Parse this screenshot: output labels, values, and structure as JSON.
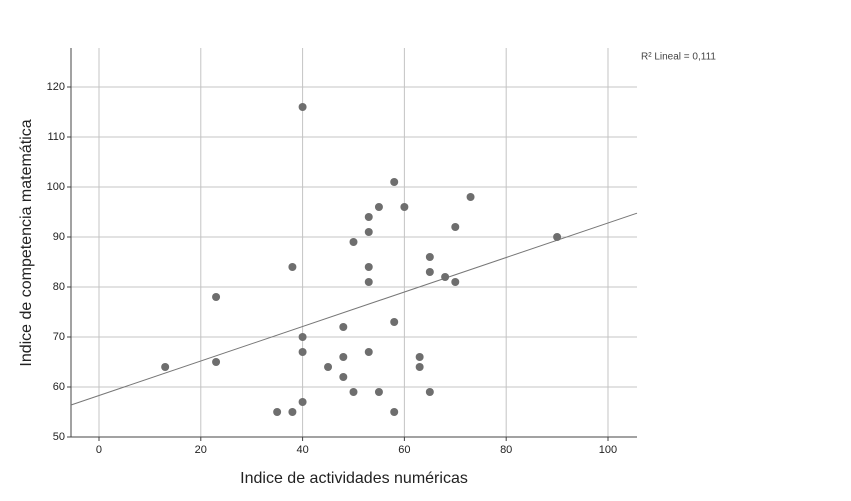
{
  "chart_data": {
    "type": "scatter",
    "xlabel": "Indice de actividades numéricas",
    "ylabel": "Indice de competencia matemática",
    "annotation": "R² Lineal = 0,111",
    "x": [
      40,
      58,
      73,
      55,
      60,
      53,
      70,
      53,
      50,
      90,
      65,
      38,
      53,
      65,
      68,
      53,
      70,
      23,
      58,
      48,
      40,
      40,
      53,
      48,
      63,
      23,
      13,
      45,
      63,
      48,
      40,
      50,
      55,
      65,
      35,
      38,
      58
    ],
    "values": [
      116,
      101,
      98,
      96,
      96,
      94,
      92,
      91,
      89,
      90,
      86,
      84,
      84,
      83,
      82,
      81,
      81,
      78,
      73,
      72,
      70,
      67,
      67,
      66,
      66,
      65,
      64,
      64,
      64,
      62,
      57,
      59,
      59,
      59,
      55,
      55,
      55
    ],
    "color": "#6e6e6e",
    "fit": {
      "intercept": 58.3,
      "slope": 0.345,
      "color": "#777777"
    },
    "xlim": [
      -5.5,
      105.7
    ],
    "ylim": [
      50,
      127.8
    ],
    "xticks": [
      0,
      20,
      40,
      60,
      80,
      100
    ],
    "yticks": [
      50,
      60,
      70,
      80,
      90,
      100,
      110,
      120
    ],
    "grid": true
  }
}
